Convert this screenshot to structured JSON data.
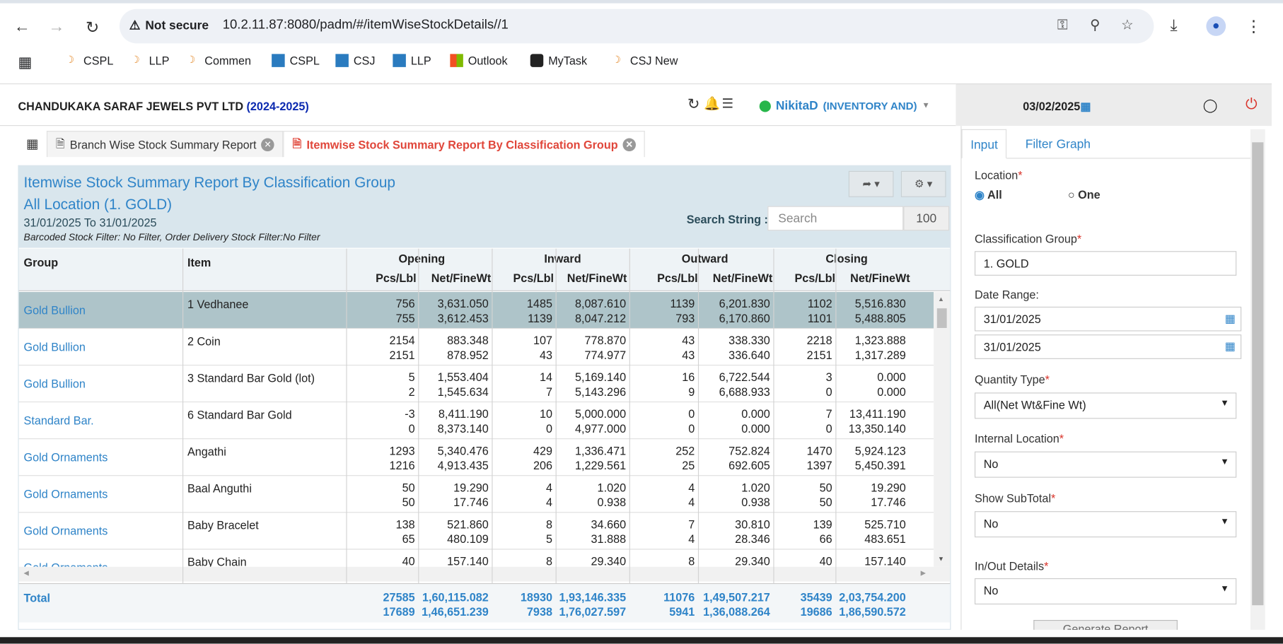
{
  "browser": {
    "security_label": "Not secure",
    "url": "10.2.11.87:8080/padm/#/itemWiseStockDetails//1",
    "bookmarks": [
      "CSPL",
      "LLP",
      "Commen",
      "CSPL",
      "CSJ",
      "LLP",
      "Outlook",
      "MyTask",
      "CSJ New"
    ]
  },
  "header": {
    "company": "CHANDUKAKA SARAF JEWELS PVT LTD",
    "year": "(2024-2025)",
    "user": "NikitaD",
    "role": "(INVENTORY AND)",
    "date": "03/02/2025"
  },
  "tabs": [
    {
      "label": "Branch Wise Stock Summary Report"
    },
    {
      "label": "Itemwise Stock Summary Report By Classification Group"
    }
  ],
  "report": {
    "title": "Itemwise Stock Summary Report By Classification Group",
    "location": "All Location (1. GOLD)",
    "period": "31/01/2025 To 31/01/2025",
    "filters": "Barcoded Stock Filter: No Filter, Order Delivery Stock Filter:No Filter",
    "search_label": "Search String :",
    "search_placeholder": "Search",
    "page_size": "100"
  },
  "columns": {
    "group": "Group",
    "item": "Item",
    "opening": "Opening",
    "inward": "Inward",
    "outward": "Outward",
    "closing": "Closing",
    "pcs": "Pcs/Lbl",
    "wt": "Net/FineWt"
  },
  "rows": [
    {
      "group": "Gold Bullion",
      "item": "1 Vedhanee",
      "vals": [
        [
          "756",
          "755"
        ],
        [
          "3,631.050",
          "3,612.453"
        ],
        [
          "1485",
          "1139"
        ],
        [
          "8,087.610",
          "8,047.212"
        ],
        [
          "1139",
          "793"
        ],
        [
          "6,201.830",
          "6,170.860"
        ],
        [
          "1102",
          "1101"
        ],
        [
          "5,516.830",
          "5,488.805"
        ]
      ]
    },
    {
      "group": "Gold Bullion",
      "item": "2 Coin",
      "vals": [
        [
          "2154",
          "2151"
        ],
        [
          "883.348",
          "878.952"
        ],
        [
          "107",
          "43"
        ],
        [
          "778.870",
          "774.977"
        ],
        [
          "43",
          "43"
        ],
        [
          "338.330",
          "336.640"
        ],
        [
          "2218",
          "2151"
        ],
        [
          "1,323.888",
          "1,317.289"
        ]
      ]
    },
    {
      "group": "Gold Bullion",
      "item": "3 Standard Bar Gold (lot)",
      "vals": [
        [
          "5",
          "2"
        ],
        [
          "1,553.404",
          "1,545.634"
        ],
        [
          "14",
          "7"
        ],
        [
          "5,169.140",
          "5,143.296"
        ],
        [
          "16",
          "9"
        ],
        [
          "6,722.544",
          "6,688.933"
        ],
        [
          "3",
          "0"
        ],
        [
          "0.000",
          "0.000"
        ]
      ]
    },
    {
      "group": "Standard Bar.",
      "item": "6 Standard Bar Gold",
      "vals": [
        [
          "-3",
          "0"
        ],
        [
          "8,411.190",
          "8,373.140"
        ],
        [
          "10",
          "0"
        ],
        [
          "5,000.000",
          "4,977.000"
        ],
        [
          "0",
          "0"
        ],
        [
          "0.000",
          "0.000"
        ],
        [
          "7",
          "0"
        ],
        [
          "13,411.190",
          "13,350.140"
        ]
      ]
    },
    {
      "group": "Gold Ornaments",
      "item": "Angathi",
      "vals": [
        [
          "1293",
          "1216"
        ],
        [
          "5,340.476",
          "4,913.435"
        ],
        [
          "429",
          "206"
        ],
        [
          "1,336.471",
          "1,229.561"
        ],
        [
          "252",
          "25"
        ],
        [
          "752.824",
          "692.605"
        ],
        [
          "1470",
          "1397"
        ],
        [
          "5,924.123",
          "5,450.391"
        ]
      ]
    },
    {
      "group": "Gold Ornaments",
      "item": "Baal Anguthi",
      "vals": [
        [
          "50",
          "50"
        ],
        [
          "19.290",
          "17.746"
        ],
        [
          "4",
          "4"
        ],
        [
          "1.020",
          "0.938"
        ],
        [
          "4",
          "4"
        ],
        [
          "1.020",
          "0.938"
        ],
        [
          "50",
          "50"
        ],
        [
          "19.290",
          "17.746"
        ]
      ]
    },
    {
      "group": "Gold Ornaments",
      "item": "Baby Bracelet",
      "vals": [
        [
          "138",
          "65"
        ],
        [
          "521.860",
          "480.109"
        ],
        [
          "8",
          "5"
        ],
        [
          "34.660",
          "31.888"
        ],
        [
          "7",
          "4"
        ],
        [
          "30.810",
          "28.346"
        ],
        [
          "139",
          "66"
        ],
        [
          "525.710",
          "483.651"
        ]
      ]
    },
    {
      "group": "Gold Ornaments",
      "item": "Baby Chain",
      "vals": [
        [
          "40",
          ""
        ],
        [
          "157.140",
          ""
        ],
        [
          "8",
          ""
        ],
        [
          "29.340",
          ""
        ],
        [
          "8",
          ""
        ],
        [
          "29.340",
          ""
        ],
        [
          "40",
          ""
        ],
        [
          "157.140",
          ""
        ]
      ]
    }
  ],
  "total": {
    "label": "Total",
    "vals": [
      [
        "27585",
        "17689"
      ],
      [
        "1,60,115.082",
        "1,46,651.239"
      ],
      [
        "18930",
        "7938"
      ],
      [
        "1,93,146.335",
        "1,76,027.597"
      ],
      [
        "11076",
        "5941"
      ],
      [
        "1,49,507.217",
        "1,36,088.264"
      ],
      [
        "35439",
        "19686"
      ],
      [
        "2,03,754.200",
        "1,86,590.572"
      ]
    ]
  },
  "sidebar": {
    "tabs": [
      "Input",
      "Filter",
      "Graph"
    ],
    "location_label": "Location",
    "opt_all": "All",
    "opt_one": "One",
    "class_group_label": "Classification Group",
    "class_group_value": "1. GOLD",
    "date_range_label": "Date Range:",
    "date_from": "31/01/2025",
    "date_to": "31/01/2025",
    "qty_type_label": "Quantity Type",
    "qty_type_value": "All(Net Wt&Fine Wt)",
    "internal_loc_label": "Internal Location",
    "internal_loc_value": "No",
    "subtotal_label": "Show SubTotal",
    "subtotal_value": "No",
    "inout_label": "In/Out Details",
    "inout_value": "No",
    "generate_label": "Generate Report"
  },
  "colors": {
    "accent": "#2f84c8",
    "danger": "#e0463a",
    "selected_row": "#aec4c9"
  }
}
